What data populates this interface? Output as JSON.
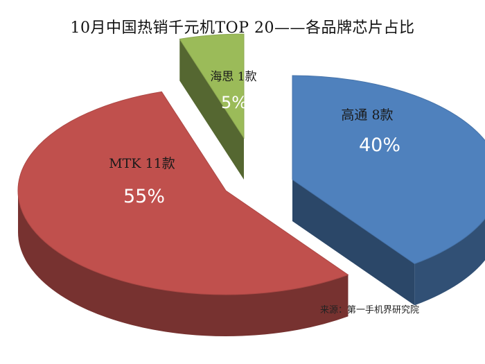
{
  "chart_data": {
    "type": "pie",
    "title": "10月中国热销千元机TOP 20——各品牌芯片占比",
    "slices": [
      {
        "label": "高通 8款",
        "value": 40,
        "percent_label": "40%",
        "color": "#4f81bd"
      },
      {
        "label": "MTK  11款",
        "value": 55,
        "percent_label": "55%",
        "color": "#c0504d"
      },
      {
        "label": "海思 1款",
        "value": 5,
        "percent_label": "5%",
        "color": "#9bbb59"
      }
    ],
    "source": "来源：第一手机界研究院",
    "legend": "none",
    "style": "3d-exploded"
  }
}
